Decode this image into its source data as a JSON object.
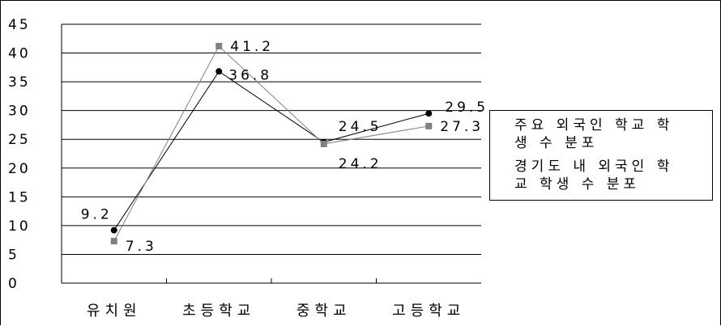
{
  "chart_data": {
    "type": "line",
    "categories": [
      "유치원",
      "초등학교",
      "중학교",
      "고등학교"
    ],
    "ylim": [
      0,
      45
    ],
    "yticks": [
      0,
      5,
      10,
      15,
      20,
      25,
      30,
      35,
      40,
      45
    ],
    "grid": true,
    "legend_position": "right",
    "series": [
      {
        "name": "주요 외국인 학교 학생 수 분포",
        "values": [
          9.2,
          36.8,
          24.5,
          29.5
        ],
        "labels": [
          "9.2",
          "36.8",
          "24.5",
          "29.5"
        ],
        "color": "#000000",
        "marker": "circle"
      },
      {
        "name": "경기도 내 외국인 학교 학생 수 분포",
        "values": [
          7.3,
          41.2,
          24.2,
          27.3
        ],
        "labels": [
          "7.3",
          "41.2",
          "24.2",
          "27.3"
        ],
        "color": "#808080",
        "marker": "square"
      }
    ]
  },
  "legend": {
    "item1_line1": "주요 외국인 학교 학",
    "item1_line2": "생 수 분포",
    "item2_line1": "경기도 내 외국인 학",
    "item2_line2": "교 학생 수 분포"
  }
}
